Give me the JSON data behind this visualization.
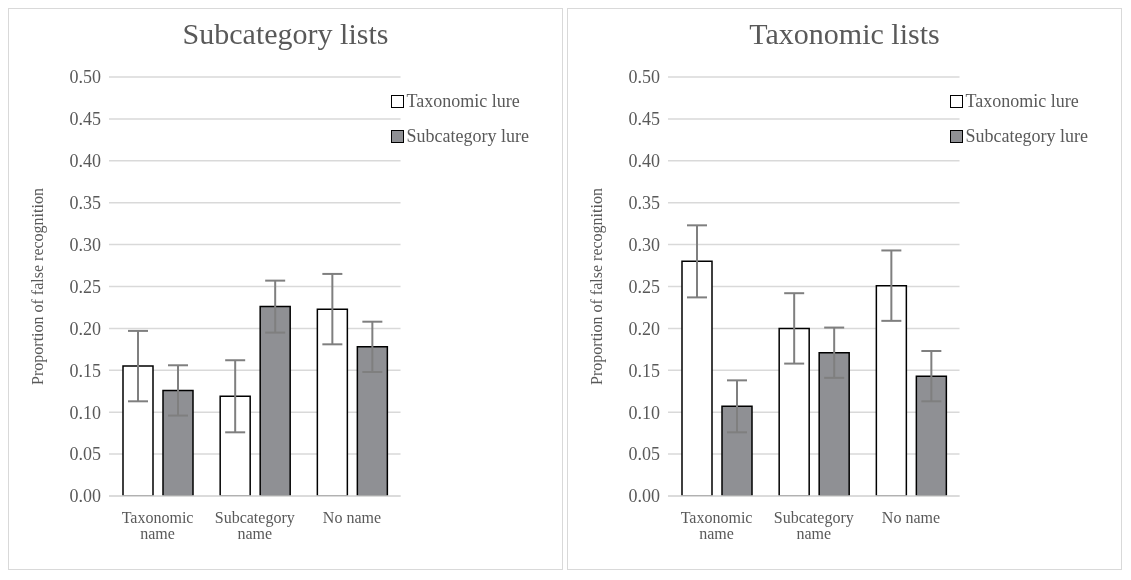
{
  "chart_data": [
    {
      "type": "bar",
      "title": "Subcategory lists",
      "ylabel": "Proportion of false recognition",
      "categories": [
        "Taxonomic name",
        "Subcategory name",
        "No name"
      ],
      "series": [
        {
          "name": "Taxonomic lure",
          "color": "#ffffff",
          "values": [
            0.155,
            0.119,
            0.223
          ],
          "errors": [
            0.042,
            0.043,
            0.042
          ]
        },
        {
          "name": "Subcategory lure",
          "color": "#8f9094",
          "values": [
            0.126,
            0.226,
            0.178
          ],
          "errors": [
            0.03,
            0.031,
            0.03
          ]
        }
      ],
      "ylim": [
        0,
        0.5
      ],
      "yticks": [
        {
          "value": 0,
          "label": "0.00"
        },
        {
          "value": 0.05,
          "label": "0.05"
        },
        {
          "value": 0.1,
          "label": "0.10"
        },
        {
          "value": 0.15,
          "label": "0.15"
        },
        {
          "value": 0.2,
          "label": "0.20"
        },
        {
          "value": 0.25,
          "label": "0.25"
        },
        {
          "value": 0.3,
          "label": "0.30"
        },
        {
          "value": 0.35,
          "label": "0.35"
        },
        {
          "value": 0.4,
          "label": "0.40"
        },
        {
          "value": 0.45,
          "label": "0.45"
        },
        {
          "value": 0.5,
          "label": "0.50"
        }
      ],
      "grid": "y",
      "legend": "top right"
    },
    {
      "type": "bar",
      "title": "Taxonomic lists",
      "ylabel": "Proportion of false recognition",
      "categories": [
        "Taxonomic name",
        "Subcategory name",
        "No name"
      ],
      "series": [
        {
          "name": "Taxonomic lure",
          "color": "#ffffff",
          "values": [
            0.28,
            0.2,
            0.251
          ],
          "errors": [
            0.043,
            0.042,
            0.042
          ]
        },
        {
          "name": "Subcategory lure",
          "color": "#8f9094",
          "values": [
            0.107,
            0.171,
            0.143
          ],
          "errors": [
            0.031,
            0.03,
            0.03
          ]
        }
      ],
      "ylim": [
        0,
        0.5
      ],
      "yticks": [
        {
          "value": 0,
          "label": "0.00"
        },
        {
          "value": 0.05,
          "label": "0.05"
        },
        {
          "value": 0.1,
          "label": "0.10"
        },
        {
          "value": 0.15,
          "label": "0.15"
        },
        {
          "value": 0.2,
          "label": "0.20"
        },
        {
          "value": 0.25,
          "label": "0.25"
        },
        {
          "value": 0.3,
          "label": "0.30"
        },
        {
          "value": 0.35,
          "label": "0.35"
        },
        {
          "value": 0.4,
          "label": "0.40"
        },
        {
          "value": 0.45,
          "label": "0.45"
        },
        {
          "value": 0.5,
          "label": "0.50"
        }
      ],
      "grid": "y",
      "legend": "top right"
    }
  ]
}
